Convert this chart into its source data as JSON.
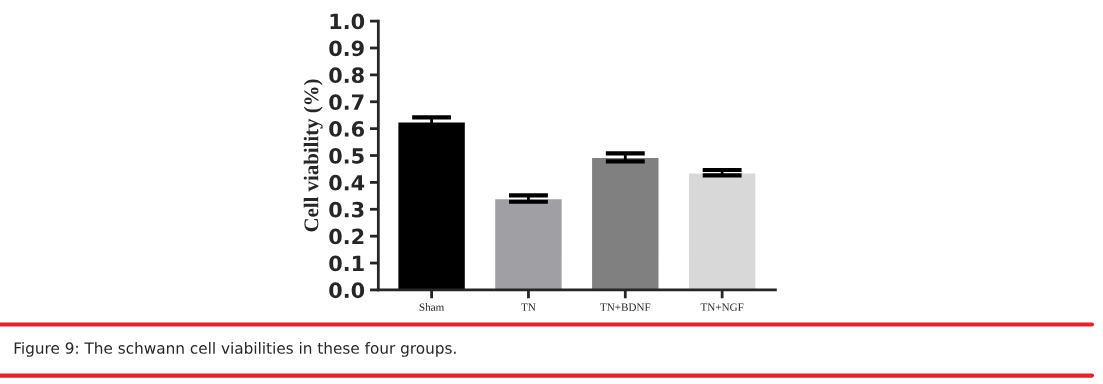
{
  "chart_data": {
    "type": "bar",
    "ylabel": "Cell viability (%)",
    "categories": [
      "Sham",
      "TN",
      "TN+BDNF",
      "TN+NGF"
    ],
    "values": [
      0.625,
      0.34,
      0.493,
      0.436
    ],
    "errors": [
      0.017,
      0.012,
      0.015,
      0.01
    ],
    "colors": [
      "#000000",
      "#a0a0a4",
      "#808080",
      "#d8d8d8"
    ],
    "ylim": [
      0,
      1.0
    ],
    "yticks": [
      {
        "value": 0,
        "label": "0.0"
      },
      0.1,
      0.2,
      0.3,
      0.4,
      0.5,
      0.6,
      0.7,
      0.8,
      0.9,
      {
        "value": 1.0,
        "label": "1.0"
      }
    ],
    "grid": false,
    "legend": false,
    "annotations": [
      "Figure 9: The schwann cell viabilities in these four groups."
    ]
  }
}
